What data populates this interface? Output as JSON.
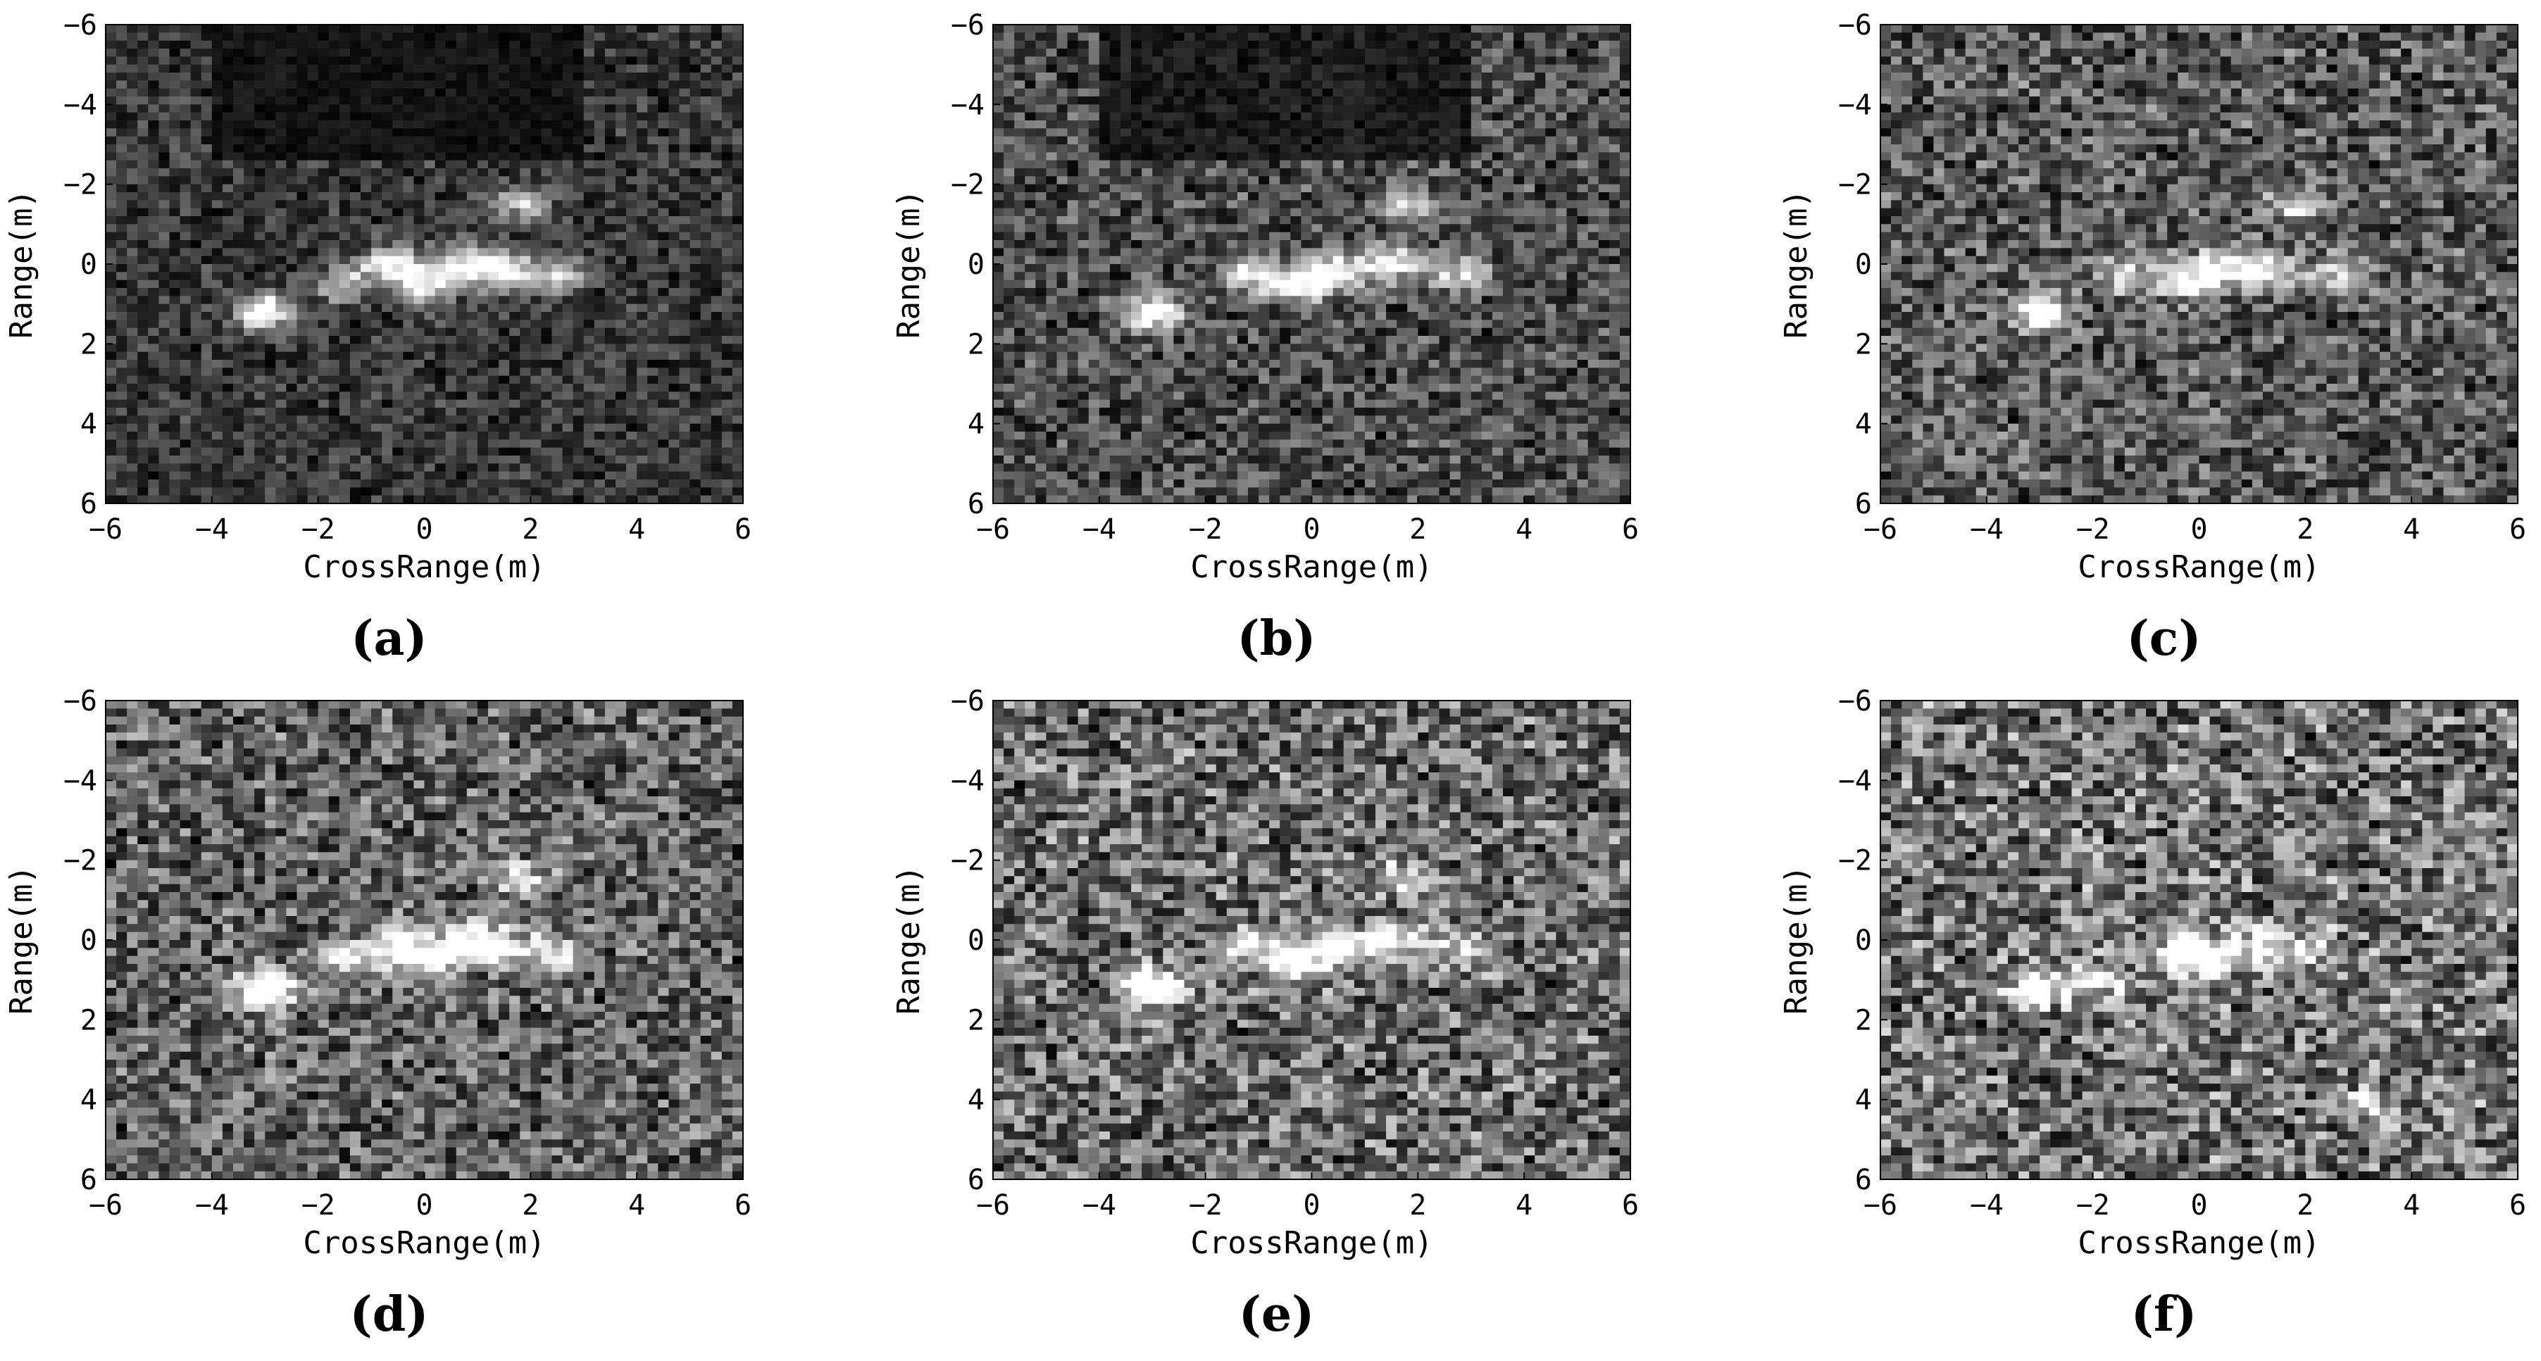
{
  "figure": {
    "panels": [
      "(a)",
      "(b)",
      "(c)",
      "(d)",
      "(e)",
      "(f)"
    ]
  },
  "chart_data": [
    {
      "type": "heatmap",
      "panel_label": "(a)",
      "xlabel": "CrossRange(m)",
      "ylabel": "Range(m)",
      "xlim": [
        -6,
        6
      ],
      "ylim": [
        -6,
        6
      ],
      "y_axis_direction": "down",
      "xticks": [
        -6,
        -4,
        -2,
        0,
        2,
        4,
        6
      ],
      "yticks": [
        -6,
        -4,
        -2,
        0,
        2,
        4,
        6
      ],
      "colormap": "gray",
      "target": [
        {
          "x": -3.0,
          "y": 1.2,
          "intensity": 1.0,
          "note": "bright scatterer"
        },
        {
          "x": -1.5,
          "y": 0.5,
          "intensity": 0.6
        },
        {
          "x": -0.6,
          "y": 0.0,
          "intensity": 0.75
        },
        {
          "x": 0.0,
          "y": 0.5,
          "intensity": 0.9
        },
        {
          "x": 0.8,
          "y": 0.0,
          "intensity": 0.8
        },
        {
          "x": 1.5,
          "y": 0.2,
          "intensity": 0.8
        },
        {
          "x": 1.8,
          "y": -1.5,
          "intensity": 0.6
        },
        {
          "x": 2.5,
          "y": 0.3,
          "intensity": 0.6
        }
      ],
      "noise_level": 0.22,
      "dark_region_top": true
    },
    {
      "type": "heatmap",
      "panel_label": "(b)",
      "xlabel": "CrossRange(m)",
      "ylabel": "Range(m)",
      "xlim": [
        -6,
        6
      ],
      "ylim": [
        -6,
        6
      ],
      "y_axis_direction": "down",
      "xticks": [
        -6,
        -4,
        -2,
        0,
        2,
        4,
        6
      ],
      "yticks": [
        -6,
        -4,
        -2,
        0,
        2,
        4,
        6
      ],
      "colormap": "gray",
      "target": [
        {
          "x": -3.0,
          "y": 1.2,
          "intensity": 1.0
        },
        {
          "x": -1.2,
          "y": 0.2,
          "intensity": 0.6
        },
        {
          "x": -0.3,
          "y": 0.5,
          "intensity": 0.85
        },
        {
          "x": 0.5,
          "y": 0.2,
          "intensity": 0.75
        },
        {
          "x": 1.5,
          "y": 0.0,
          "intensity": 0.75
        },
        {
          "x": 1.8,
          "y": -1.5,
          "intensity": 0.55
        },
        {
          "x": 2.8,
          "y": 0.3,
          "intensity": 0.55
        }
      ],
      "noise_level": 0.3,
      "dark_region_top": true
    },
    {
      "type": "heatmap",
      "panel_label": "(c)",
      "xlabel": "CrossRange(m)",
      "ylabel": "Range(m)",
      "xlim": [
        -6,
        6
      ],
      "ylim": [
        -6,
        6
      ],
      "y_axis_direction": "down",
      "xticks": [
        -6,
        -4,
        -2,
        0,
        2,
        4,
        6
      ],
      "yticks": [
        -6,
        -4,
        -2,
        0,
        2,
        4,
        6
      ],
      "colormap": "gray",
      "target": [
        {
          "x": -3.0,
          "y": 1.2,
          "intensity": 1.0
        },
        {
          "x": -1.5,
          "y": 0.3,
          "intensity": 0.55
        },
        {
          "x": -0.3,
          "y": 0.4,
          "intensity": 0.85
        },
        {
          "x": 0.5,
          "y": 0.0,
          "intensity": 0.7
        },
        {
          "x": 1.3,
          "y": 0.2,
          "intensity": 0.7
        },
        {
          "x": 1.8,
          "y": -1.5,
          "intensity": 0.5
        },
        {
          "x": 2.6,
          "y": 0.3,
          "intensity": 0.5
        }
      ],
      "noise_level": 0.35,
      "dark_region_top": false
    },
    {
      "type": "heatmap",
      "panel_label": "(d)",
      "xlabel": "CrossRange(m)",
      "ylabel": "Range(m)",
      "xlim": [
        -6,
        6
      ],
      "ylim": [
        -6,
        6
      ],
      "y_axis_direction": "down",
      "xticks": [
        -6,
        -4,
        -2,
        0,
        2,
        4,
        6
      ],
      "yticks": [
        -6,
        -4,
        -2,
        0,
        2,
        4,
        6
      ],
      "colormap": "gray",
      "target": [
        {
          "x": -3.0,
          "y": 1.2,
          "intensity": 1.0
        },
        {
          "x": -1.5,
          "y": 0.5,
          "intensity": 0.55
        },
        {
          "x": -0.6,
          "y": 0.0,
          "intensity": 0.7
        },
        {
          "x": 0.0,
          "y": 0.5,
          "intensity": 0.9
        },
        {
          "x": 0.8,
          "y": 0.0,
          "intensity": 0.75
        },
        {
          "x": 1.5,
          "y": 0.2,
          "intensity": 0.75
        },
        {
          "x": 1.8,
          "y": -1.5,
          "intensity": 0.55
        },
        {
          "x": 2.5,
          "y": 0.3,
          "intensity": 0.55
        }
      ],
      "noise_level": 0.38,
      "dark_region_top": false
    },
    {
      "type": "heatmap",
      "panel_label": "(e)",
      "xlabel": "CrossRange(m)",
      "ylabel": "Range(m)",
      "xlim": [
        -6,
        6
      ],
      "ylim": [
        -6,
        6
      ],
      "y_axis_direction": "down",
      "xticks": [
        -6,
        -4,
        -2,
        0,
        2,
        4,
        6
      ],
      "yticks": [
        -6,
        -4,
        -2,
        0,
        2,
        4,
        6
      ],
      "colormap": "gray",
      "target": [
        {
          "x": -3.0,
          "y": 1.2,
          "intensity": 1.0
        },
        {
          "x": -1.2,
          "y": 0.2,
          "intensity": 0.55
        },
        {
          "x": -0.3,
          "y": 0.5,
          "intensity": 0.8
        },
        {
          "x": 0.5,
          "y": 0.2,
          "intensity": 0.7
        },
        {
          "x": 1.5,
          "y": 0.0,
          "intensity": 0.7
        },
        {
          "x": 1.8,
          "y": -1.5,
          "intensity": 0.5
        },
        {
          "x": 2.8,
          "y": 0.3,
          "intensity": 0.5
        }
      ],
      "noise_level": 0.42,
      "dark_region_top": false
    },
    {
      "type": "heatmap",
      "panel_label": "(f)",
      "xlabel": "CrossRange(m)",
      "ylabel": "Range(m)",
      "xlim": [
        -6,
        6
      ],
      "ylim": [
        -6,
        6
      ],
      "y_axis_direction": "down",
      "xticks": [
        -6,
        -4,
        -2,
        0,
        2,
        4,
        6
      ],
      "yticks": [
        -6,
        -4,
        -2,
        0,
        2,
        4,
        6
      ],
      "colormap": "gray",
      "target": [
        {
          "x": -3.0,
          "y": 1.2,
          "intensity": 1.0
        },
        {
          "x": -1.8,
          "y": 1.0,
          "intensity": 0.5
        },
        {
          "x": -0.3,
          "y": 0.3,
          "intensity": 0.65
        },
        {
          "x": 0.0,
          "y": 0.5,
          "intensity": 0.75
        },
        {
          "x": 1.0,
          "y": 0.2,
          "intensity": 0.6
        },
        {
          "x": 2.0,
          "y": 0.3,
          "intensity": 0.55
        },
        {
          "x": 3.3,
          "y": 4.2,
          "intensity": 0.45
        }
      ],
      "noise_level": 0.45,
      "dark_region_top": false
    }
  ]
}
